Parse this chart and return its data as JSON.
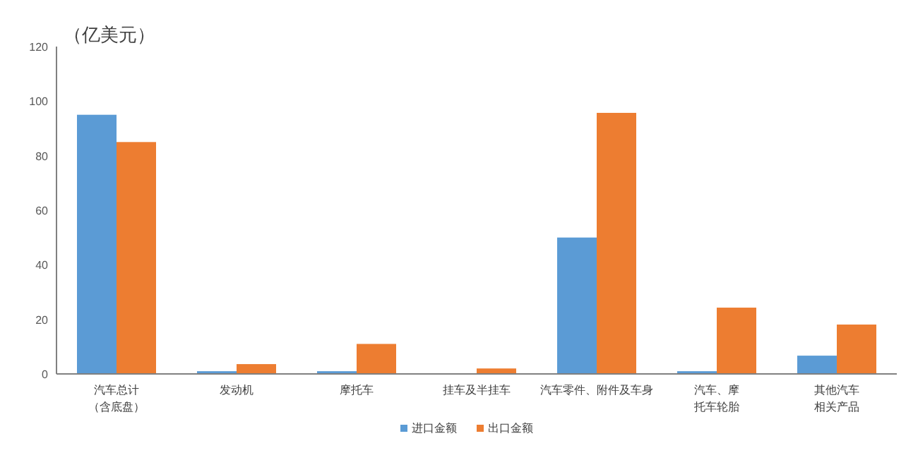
{
  "chart_data": {
    "type": "bar",
    "ylabel": "（亿美元）",
    "categories": [
      "汽车总计（含底盘）",
      "发动机",
      "摩托车",
      "挂车及半挂车",
      "汽车零件、附件及车身",
      "汽车、摩托车轮胎",
      "其他汽车相关产品"
    ],
    "series": [
      {
        "name": "进口金额",
        "color": "#5b9bd5",
        "values": [
          95,
          1,
          1,
          null,
          50,
          1,
          6.7
        ]
      },
      {
        "name": "出口金额",
        "color": "#ed7d31",
        "values": [
          85,
          3.6,
          11,
          2,
          95.7,
          24.3,
          18.1
        ]
      }
    ],
    "ylim": [
      0,
      120
    ],
    "yticks": [
      0,
      20,
      40,
      60,
      80,
      100,
      120
    ],
    "grid": false,
    "legend": "bottom"
  }
}
